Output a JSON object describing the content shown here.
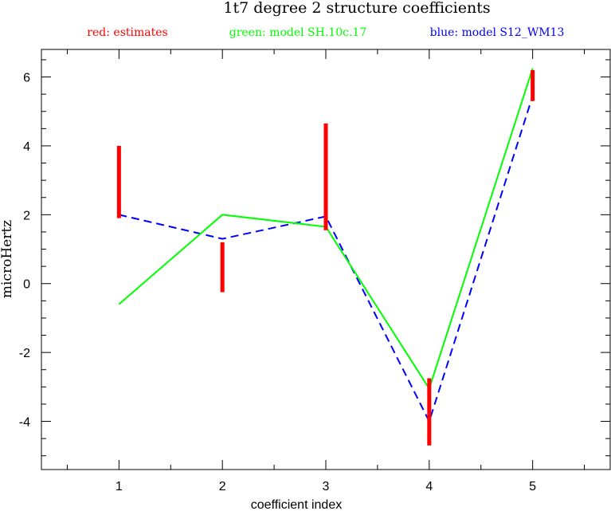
{
  "chart_data": {
    "type": "line",
    "title": "1t7 degree 2 structure coefficients",
    "xlabel": "coefficient index",
    "ylabel": "microHertz",
    "xlim": [
      0.25,
      5.75
    ],
    "ylim": [
      -5.4,
      6.8
    ],
    "xticks": [
      1,
      2,
      3,
      4,
      5
    ],
    "yticks": [
      -4,
      -2,
      0,
      2,
      4,
      6
    ],
    "legend": {
      "placement": "top",
      "red": "red: estimates",
      "green": "green: model SH.10c.17",
      "blue": "blue: model S12_WM13"
    },
    "colors": {
      "red": "#ff0000",
      "green": "#00ff00",
      "blue": "#0000ff"
    },
    "series": [
      {
        "name": "red: estimates",
        "kind": "errorbar",
        "x": [
          1,
          2,
          3,
          4,
          5
        ],
        "low": [
          1.9,
          -0.25,
          1.55,
          -4.7,
          5.3
        ],
        "high": [
          4.0,
          1.2,
          4.65,
          -2.75,
          6.2
        ]
      },
      {
        "name": "green: model SH.10c.17",
        "kind": "solid",
        "x": [
          1,
          2,
          3,
          4,
          5
        ],
        "y": [
          -0.6,
          2.0,
          1.65,
          -3.05,
          6.25
        ]
      },
      {
        "name": "blue: model S12_WM13",
        "kind": "dashed",
        "x": [
          1,
          2,
          3,
          4,
          5
        ],
        "y": [
          2.0,
          1.3,
          1.95,
          -4.0,
          5.45
        ]
      }
    ]
  }
}
